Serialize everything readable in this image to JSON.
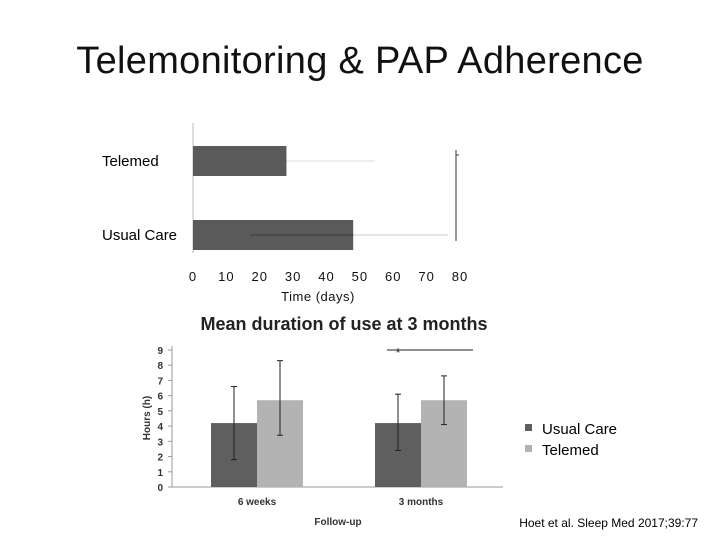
{
  "slide": {
    "title": "Telemonitoring & PAP Adherence",
    "citation": "Hoet et al. Sleep Med 2017;39:77"
  },
  "chart_data": [
    {
      "type": "bar",
      "orientation": "horizontal",
      "title": "",
      "categories": [
        "Telemed",
        "Usual Care"
      ],
      "values": [
        28,
        48
      ],
      "xlabel": "Time (days)",
      "ylabel": "",
      "xlim": [
        0,
        80
      ],
      "xticks": [
        0,
        10,
        20,
        30,
        40,
        50,
        60,
        70,
        80
      ],
      "grid": false,
      "color": "#5a5a5a"
    },
    {
      "type": "bar",
      "title": "Mean duration of use at 3 months",
      "categories": [
        "6 weeks",
        "3 months"
      ],
      "xlabel": "Follow-up",
      "ylabel": "Hours (h)",
      "ylim": [
        0,
        9
      ],
      "yticks": [
        0,
        1,
        2,
        3,
        4,
        5,
        6,
        7,
        8,
        9
      ],
      "series": [
        {
          "name": "Usual Care",
          "color": "#5f5f5f",
          "values": [
            4.2,
            4.2
          ],
          "err_low": [
            1.8,
            2.4
          ],
          "err_high": [
            6.6,
            6.1
          ]
        },
        {
          "name": "Telemed",
          "color": "#b3b3b3",
          "values": [
            5.7,
            5.7
          ],
          "err_low": [
            3.4,
            4.1
          ],
          "err_high": [
            8.3,
            7.3
          ]
        }
      ],
      "annotation": "*",
      "legend_position": "right"
    }
  ]
}
